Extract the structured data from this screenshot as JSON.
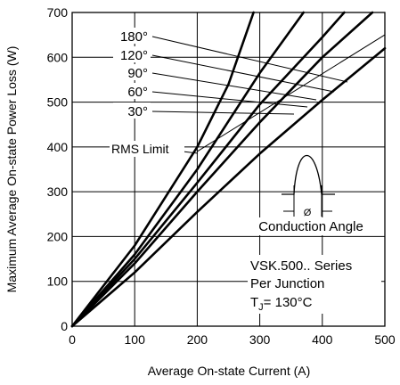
{
  "chart_data": {
    "type": "line",
    "xlabel": "Average On-state Current (A)",
    "ylabel": "Maximum Average On-state Power Loss (W)",
    "xlim": [
      0,
      500
    ],
    "ylim": [
      0,
      700
    ],
    "x_ticks": [
      "0",
      "100",
      "200",
      "300",
      "400",
      "500"
    ],
    "y_ticks": [
      "0",
      "100",
      "200",
      "300",
      "400",
      "500",
      "600",
      "700"
    ],
    "grid": true,
    "series": [
      {
        "name": "180°",
        "x": [
          0,
          100,
          200,
          250,
          290
        ],
        "y": [
          0,
          180,
          400,
          540,
          700
        ]
      },
      {
        "name": "120°",
        "x": [
          0,
          100,
          200,
          300,
          370
        ],
        "y": [
          0,
          160,
          350,
          565,
          700
        ]
      },
      {
        "name": "90°",
        "x": [
          0,
          100,
          200,
          300,
          400,
          435
        ],
        "y": [
          0,
          150,
          320,
          495,
          645,
          700
        ]
      },
      {
        "name": "60°",
        "x": [
          0,
          100,
          200,
          300,
          400,
          480
        ],
        "y": [
          0,
          140,
          300,
          455,
          600,
          700
        ]
      },
      {
        "name": "30°",
        "x": [
          0,
          100,
          200,
          300,
          400,
          500
        ],
        "y": [
          0,
          120,
          255,
          385,
          505,
          620
        ]
      },
      {
        "name": "RMS Limit",
        "x": [
          200,
          500
        ],
        "y": [
          390,
          650
        ]
      }
    ],
    "rms_label": "RMS Limit",
    "conduction_angle_label": "Conduction Angle",
    "phi_symbol": "Ø",
    "info": {
      "series": "VSK.500.. Series",
      "per": "Per Junction",
      "tj_prefix": "T",
      "tj_sub": "J",
      "tj_value": "= 130°C"
    }
  }
}
